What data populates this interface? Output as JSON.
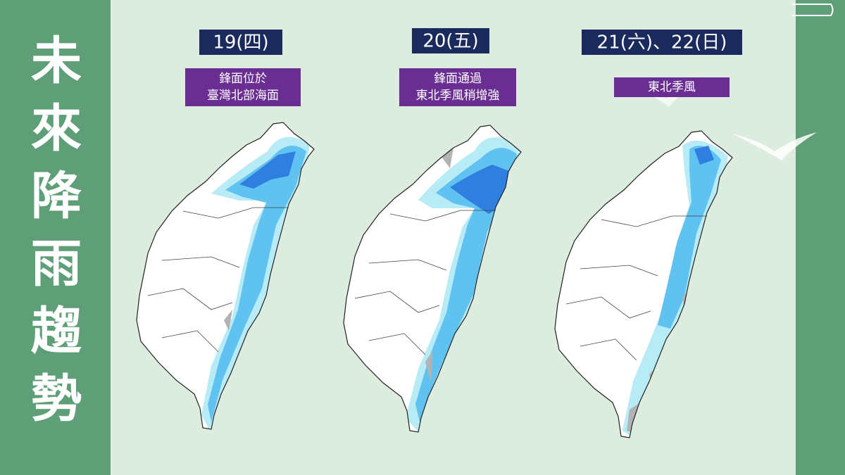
{
  "header": {
    "title": [
      "未",
      "來",
      "降",
      "雨",
      "趨",
      "勢"
    ]
  },
  "panels": [
    {
      "date": "19(四)",
      "description": [
        "鋒面位於",
        "臺灣北部海面"
      ]
    },
    {
      "date": "20(五)",
      "description": [
        "鋒面通過",
        "東北季風稍增強"
      ]
    },
    {
      "date": "21(六)、22(日)",
      "description": [
        "東北季風"
      ]
    }
  ]
}
